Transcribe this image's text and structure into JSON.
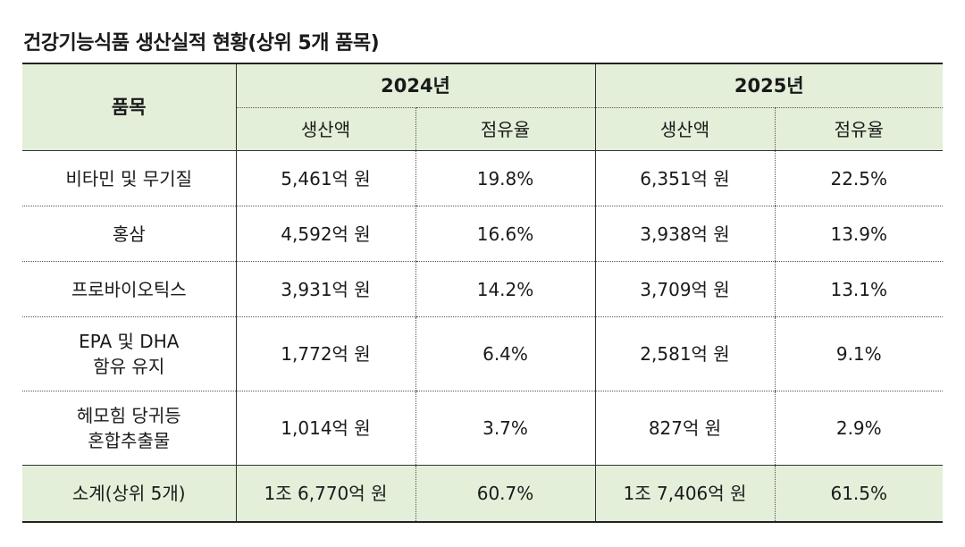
{
  "title": "건강기능식품 생산실적 현황(상위 5개 품목)",
  "header": {
    "item": "품목",
    "years": [
      "2024년",
      "2025년"
    ],
    "production": "생산액",
    "share": "점유율"
  },
  "rows": [
    {
      "item": [
        "비타민 및 무기질"
      ],
      "prod_2024": "5,461억 원",
      "share_2024": "19.8%",
      "prod_2025": "6,351억 원",
      "share_2025": "22.5%"
    },
    {
      "item": [
        "홍삼"
      ],
      "prod_2024": "4,592억 원",
      "share_2024": "16.6%",
      "prod_2025": "3,938억 원",
      "share_2025": "13.9%"
    },
    {
      "item": [
        "프로바이오틱스"
      ],
      "prod_2024": "3,931억 원",
      "share_2024": "14.2%",
      "prod_2025": "3,709억 원",
      "share_2025": "13.1%"
    },
    {
      "item": [
        "EPA 및 DHA",
        "함유 유지"
      ],
      "prod_2024": "1,772억 원",
      "share_2024": "6.4%",
      "prod_2025": "2,581억 원",
      "share_2025": "9.1%"
    },
    {
      "item": [
        "헤모힘 당귀등",
        "혼합추출물"
      ],
      "prod_2024": "1,014억 원",
      "share_2024": "3.7%",
      "prod_2025": "827억 원",
      "share_2025": "2.9%"
    }
  ],
  "total": {
    "item": "소계(상위 5개)",
    "prod_2024": "1조 6,770억 원",
    "share_2024": "60.7%",
    "prod_2025": "1조 7,406억 원",
    "share_2025": "61.5%"
  },
  "colors": {
    "header_bg": "#e3efd9",
    "text": "#1a1a1a"
  }
}
